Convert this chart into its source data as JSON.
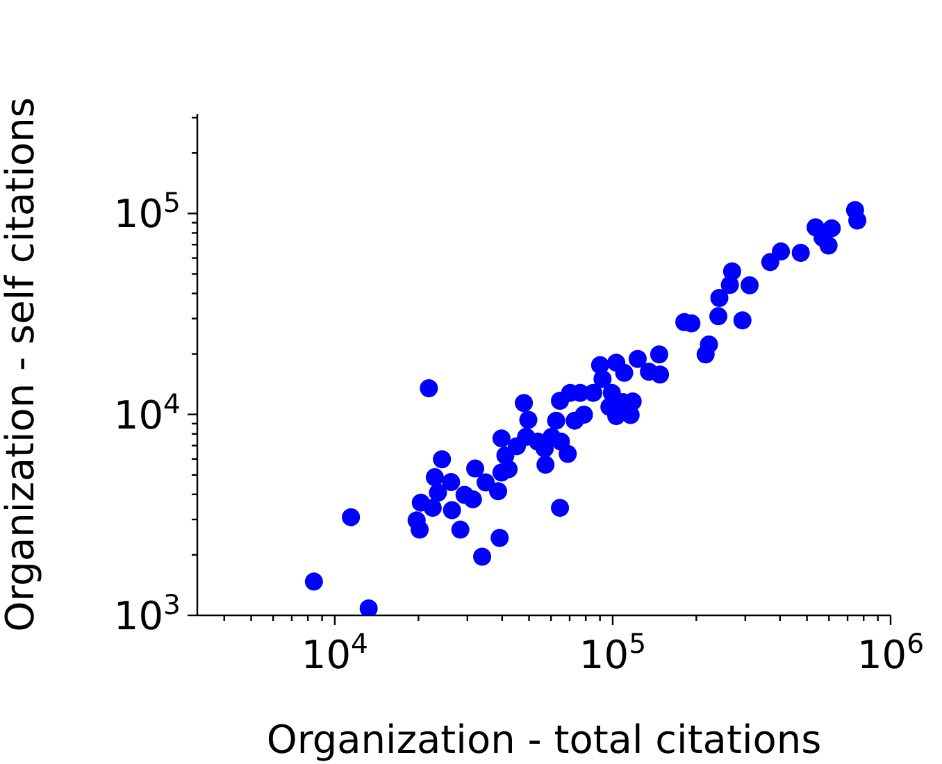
{
  "chart_data": {
    "type": "scatter",
    "xlabel": "Organization - total citations",
    "ylabel": "Organization - self citations",
    "log": "xy",
    "marker": "circle",
    "xlim": [
      3200,
      1000000
    ],
    "ylim": [
      1000,
      313000
    ],
    "xticks": [
      {
        "value": 4000,
        "label": null
      },
      {
        "value": 5000,
        "label": null
      },
      {
        "value": 6000,
        "label": null
      },
      {
        "value": 7000,
        "label": null
      },
      {
        "value": 8000,
        "label": null
      },
      {
        "value": 9000,
        "label": null
      },
      {
        "value": 10000,
        "label": "10$^{4}$"
      },
      {
        "value": 20000,
        "label": null
      },
      {
        "value": 30000,
        "label": null
      },
      {
        "value": 40000,
        "label": null
      },
      {
        "value": 50000,
        "label": null
      },
      {
        "value": 60000,
        "label": null
      },
      {
        "value": 70000,
        "label": null
      },
      {
        "value": 80000,
        "label": null
      },
      {
        "value": 90000,
        "label": null
      },
      {
        "value": 100000,
        "label": "10$^{5}$"
      },
      {
        "value": 200000,
        "label": null
      },
      {
        "value": 300000,
        "label": null
      },
      {
        "value": 400000,
        "label": null
      },
      {
        "value": 500000,
        "label": null
      },
      {
        "value": 600000,
        "label": null
      },
      {
        "value": 700000,
        "label": null
      },
      {
        "value": 800000,
        "label": null
      },
      {
        "value": 900000,
        "label": null
      },
      {
        "value": 1000000,
        "label": "10$^{6}$"
      }
    ],
    "yticks": [
      {
        "value": 1000,
        "label": "10$^{3}$"
      },
      {
        "value": 2000,
        "label": null
      },
      {
        "value": 3000,
        "label": null
      },
      {
        "value": 4000,
        "label": null
      },
      {
        "value": 5000,
        "label": null
      },
      {
        "value": 6000,
        "label": null
      },
      {
        "value": 7000,
        "label": null
      },
      {
        "value": 8000,
        "label": null
      },
      {
        "value": 9000,
        "label": null
      },
      {
        "value": 10000,
        "label": "10$^{4}$"
      },
      {
        "value": 20000,
        "label": null
      },
      {
        "value": 30000,
        "label": null
      },
      {
        "value": 40000,
        "label": null
      },
      {
        "value": 50000,
        "label": null
      },
      {
        "value": 60000,
        "label": null
      },
      {
        "value": 70000,
        "label": null
      },
      {
        "value": 80000,
        "label": null
      },
      {
        "value": 90000,
        "label": null
      },
      {
        "value": 100000,
        "label": "10$^{5}$"
      },
      {
        "value": 200000,
        "label": null
      },
      {
        "value": 300000,
        "label": null
      }
    ],
    "series": [
      {
        "color": "#0000ff",
        "x": [
          8410,
          13240,
          11430,
          21800,
          19700,
          20200,
          20400,
          22500,
          24300,
          22900,
          23500,
          26200,
          26400,
          28300,
          29300,
          31400,
          32000,
          33900,
          34900,
          38700,
          39200,
          39800,
          41100,
          39800,
          42200,
          47900,
          49700,
          45200,
          48800,
          53700,
          57300,
          56900,
          60300,
          62600,
          64600,
          65100,
          68900,
          64600,
          70300,
          76400,
          73000,
          78800,
          85100,
          90100,
          91900,
          99300,
          97300,
          103000,
          103000,
          110000,
          109000,
          116000,
          118000,
          123000,
          135000,
          147000,
          148000,
          181000,
          192000,
          216000,
          222000,
          240000,
          242000,
          264000,
          269000,
          293000,
          311000,
          369000,
          403000,
          475000,
          537000,
          569000,
          598000,
          614000,
          745000,
          759000
        ],
        "values": [
          1473,
          1083,
          3080,
          13500,
          2970,
          2670,
          3640,
          3430,
          5980,
          4870,
          4080,
          4610,
          3340,
          2670,
          3980,
          3780,
          5380,
          1960,
          4590,
          4150,
          2430,
          7600,
          6250,
          5140,
          5340,
          11400,
          9400,
          6950,
          7730,
          7330,
          5620,
          6760,
          7730,
          9310,
          3430,
          7330,
          6360,
          11700,
          12800,
          12800,
          9310,
          9980,
          12800,
          17600,
          15000,
          12800,
          10900,
          9820,
          18100,
          16100,
          11500,
          9930,
          11600,
          18900,
          16300,
          19900,
          15800,
          28800,
          28400,
          19900,
          22300,
          30800,
          38000,
          44100,
          51500,
          29400,
          43900,
          57300,
          64700,
          63700,
          85300,
          75900,
          69300,
          84400,
          104000,
          92300
        ]
      }
    ]
  }
}
